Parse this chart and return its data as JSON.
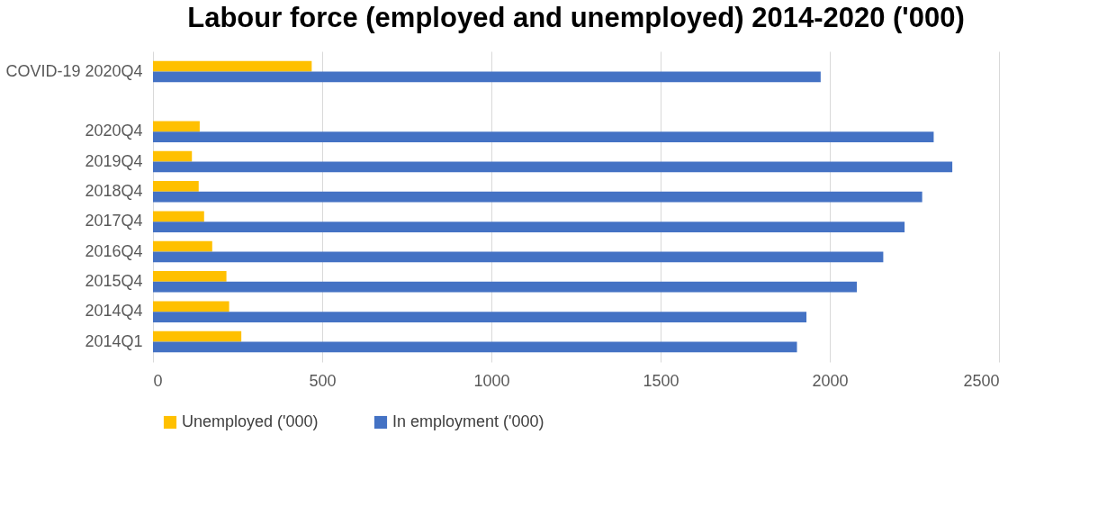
{
  "chart_data": {
    "type": "bar",
    "orientation": "horizontal",
    "title": "Labour force (employed and unemployed) 2014-2020 ('000)",
    "categories": [
      "COVID-19 2020Q4",
      null,
      "2020Q4",
      "2019Q4",
      "2018Q4",
      "2017Q4",
      "2016Q4",
      "2015Q4",
      "2014Q4",
      "2014Q1"
    ],
    "series": [
      {
        "name": "Unemployed ('000)",
        "color": "#ffc000",
        "values": [
          469,
          null,
          138,
          115,
          135,
          151,
          175,
          217,
          225,
          261
        ]
      },
      {
        "name": "In employment ('000)",
        "color": "#4472c4",
        "values": [
          1973,
          null,
          2307,
          2362,
          2273,
          2221,
          2158,
          2080,
          1931,
          1903
        ]
      }
    ],
    "xlim": [
      0,
      2500
    ],
    "xticks": [
      0,
      500,
      1000,
      1500,
      2000,
      2500
    ],
    "grid": "x",
    "legend": "bottom"
  }
}
